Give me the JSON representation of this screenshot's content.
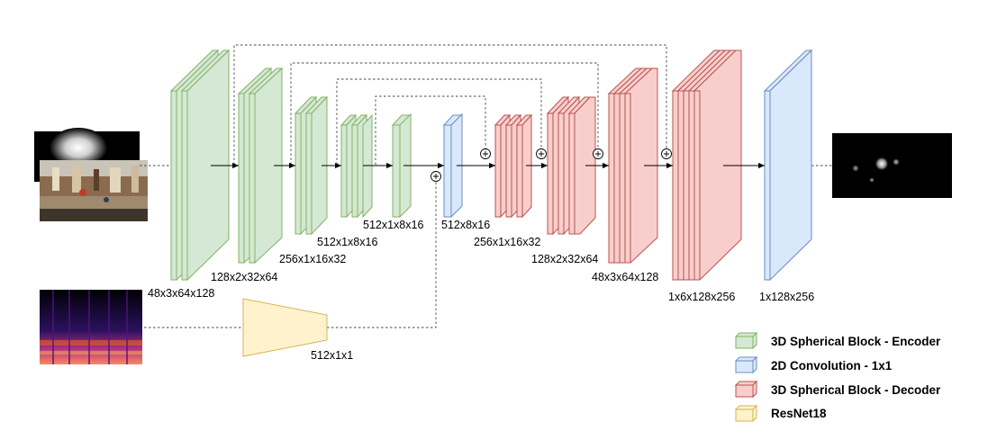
{
  "colors": {
    "encoder_fill": "#d5e8d4",
    "encoder_stroke": "#82b366",
    "decoder_fill": "#f8cecc",
    "decoder_stroke": "#b85450",
    "conv_fill": "#dae8fc",
    "conv_stroke": "#6c8ebf",
    "resnet_fill": "#fff2cc",
    "resnet_stroke": "#d6b656"
  },
  "dims": {
    "enc1": "48x3x64x128",
    "enc2": "128x2x32x64",
    "enc3": "256x1x16x32",
    "enc4": "512x1x8x16",
    "enc5": "512x1x8x16",
    "bottleneck": "512x8x16",
    "dec1": "256x1x16x32",
    "dec2": "128x2x32x64",
    "dec3": "48x3x64x128",
    "dec4": "1x6x128x256",
    "output": "1x128x256",
    "resnet": "512x1x1"
  },
  "legend": {
    "encoder": "3D Spherical Block - Encoder",
    "conv": "2D Convolution - 1x1",
    "decoder": "3D Spherical Block - Decoder",
    "resnet": "ResNet18"
  }
}
